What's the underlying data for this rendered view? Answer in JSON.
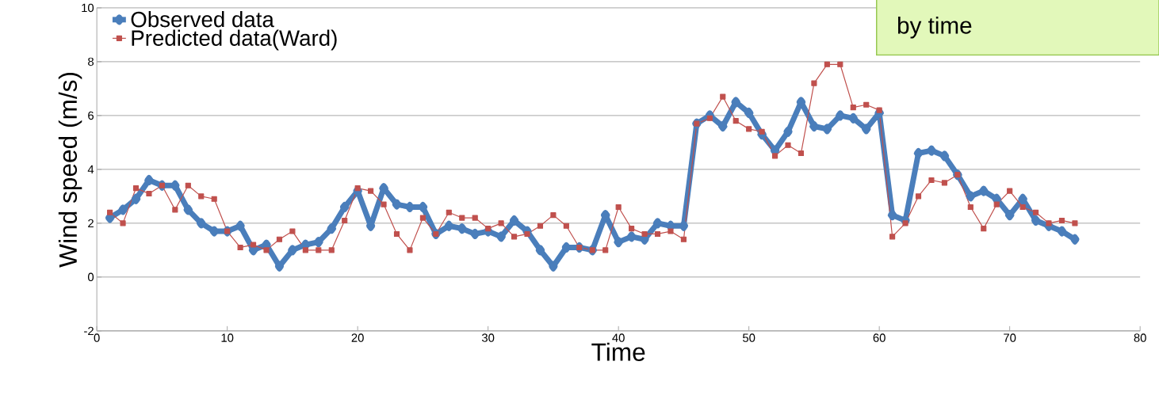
{
  "chart_data": {
    "type": "line",
    "xlabel": "Time",
    "ylabel": "Wind speed (m/s)",
    "annotations": [
      "by time"
    ],
    "x": [
      1,
      2,
      3,
      4,
      5,
      6,
      7,
      8,
      9,
      10,
      11,
      12,
      13,
      14,
      15,
      16,
      17,
      18,
      19,
      20,
      21,
      22,
      23,
      24,
      25,
      26,
      27,
      28,
      29,
      30,
      31,
      32,
      33,
      34,
      35,
      36,
      37,
      38,
      39,
      40,
      41,
      42,
      43,
      44,
      45,
      46,
      47,
      48,
      49,
      50,
      51,
      52,
      53,
      54,
      55,
      56,
      57,
      58,
      59,
      60,
      61,
      62,
      63,
      64,
      65,
      66,
      67,
      68,
      69,
      70,
      71,
      72,
      73,
      74,
      75
    ],
    "series": [
      {
        "name": "Observed data",
        "color": "#4a7ebb",
        "marker": "diamond",
        "values": [
          2.2,
          2.5,
          2.9,
          3.6,
          3.4,
          3.4,
          2.5,
          2.0,
          1.7,
          1.7,
          1.9,
          1.0,
          1.2,
          0.4,
          1.0,
          1.2,
          1.3,
          1.8,
          2.6,
          3.2,
          1.9,
          3.3,
          2.7,
          2.6,
          2.6,
          1.6,
          1.9,
          1.8,
          1.6,
          1.7,
          1.5,
          2.1,
          1.7,
          1.0,
          0.4,
          1.1,
          1.1,
          1.0,
          2.3,
          1.3,
          1.5,
          1.4,
          2.0,
          1.9,
          1.9,
          5.7,
          6.0,
          5.6,
          6.5,
          6.1,
          5.3,
          4.7,
          5.4,
          6.5,
          5.6,
          5.5,
          6.0,
          5.9,
          5.5,
          6.1,
          2.3,
          2.1,
          4.6,
          4.7,
          4.5,
          3.8,
          3.0,
          3.2,
          2.9,
          2.3,
          2.9,
          2.1,
          1.9,
          1.7,
          1.4
        ]
      },
      {
        "name": "Predicted data(Ward)",
        "color": "#c0504d",
        "marker": "square",
        "values": [
          2.4,
          2.0,
          3.3,
          3.1,
          3.4,
          2.5,
          3.4,
          3.0,
          2.9,
          1.7,
          1.1,
          1.2,
          1.0,
          1.4,
          1.7,
          1.0,
          1.0,
          1.0,
          2.1,
          3.3,
          3.2,
          2.7,
          1.6,
          1.0,
          2.2,
          1.6,
          2.4,
          2.2,
          2.2,
          1.8,
          2.0,
          1.5,
          1.6,
          1.9,
          2.3,
          1.9,
          1.1,
          1.0,
          1.0,
          2.6,
          1.8,
          1.6,
          1.6,
          1.7,
          1.4,
          5.7,
          5.9,
          6.7,
          5.8,
          5.5,
          5.4,
          4.5,
          4.9,
          4.6,
          7.2,
          7.9,
          7.9,
          6.3,
          6.4,
          6.2,
          1.5,
          2.0,
          3.0,
          3.6,
          3.5,
          3.8,
          2.6,
          1.8,
          2.7,
          3.2,
          2.6,
          2.4,
          2.0,
          2.1,
          2.0
        ]
      }
    ],
    "xlim": [
      0,
      80
    ],
    "xticks": [
      0,
      10,
      20,
      30,
      40,
      50,
      60,
      70,
      80
    ],
    "ylim": [
      -2,
      10
    ],
    "yticks": [
      -2,
      0,
      2,
      4,
      6,
      8,
      10
    ],
    "grid": "y",
    "legend": "top left",
    "line_style": "solid"
  }
}
